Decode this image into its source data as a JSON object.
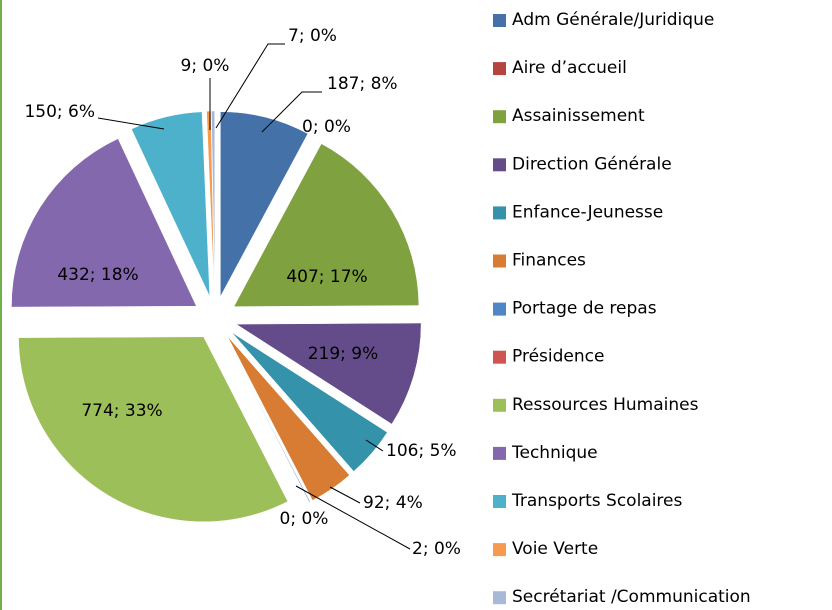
{
  "chart_data": {
    "type": "pie",
    "categories": [
      "Adm Générale/Juridique",
      "Aire d’accueil",
      "Assainissement",
      "Direction Générale",
      "Enfance-Jeunesse",
      "Finances",
      "Portage de repas",
      "Présidence",
      "Ressources Humaines",
      "Technique",
      "Transports Scolaires",
      "Voie Verte",
      "Secrétariat /Communication"
    ],
    "values": [
      187,
      0,
      407,
      219,
      106,
      92,
      2,
      0,
      774,
      432,
      150,
      9,
      7
    ],
    "value_labels": [
      "187; 8%",
      "0; 0%",
      "407; 17%",
      "219; 9%",
      "106; 5%",
      "92; 4%",
      "2; 0%",
      "0; 0%",
      "774; 33%",
      "432; 18%",
      "150; 6%",
      "9; 0%",
      "7; 0%"
    ],
    "colors": [
      "#4472a8",
      "#b5443f",
      "#7fa140",
      "#644c8a",
      "#3592ab",
      "#d87b33",
      "#4f86c6",
      "#d05552",
      "#9dbf5a",
      "#8468ad",
      "#4eb1cc",
      "#f59a4e",
      "#a8b9d8"
    ],
    "legend": "right"
  }
}
